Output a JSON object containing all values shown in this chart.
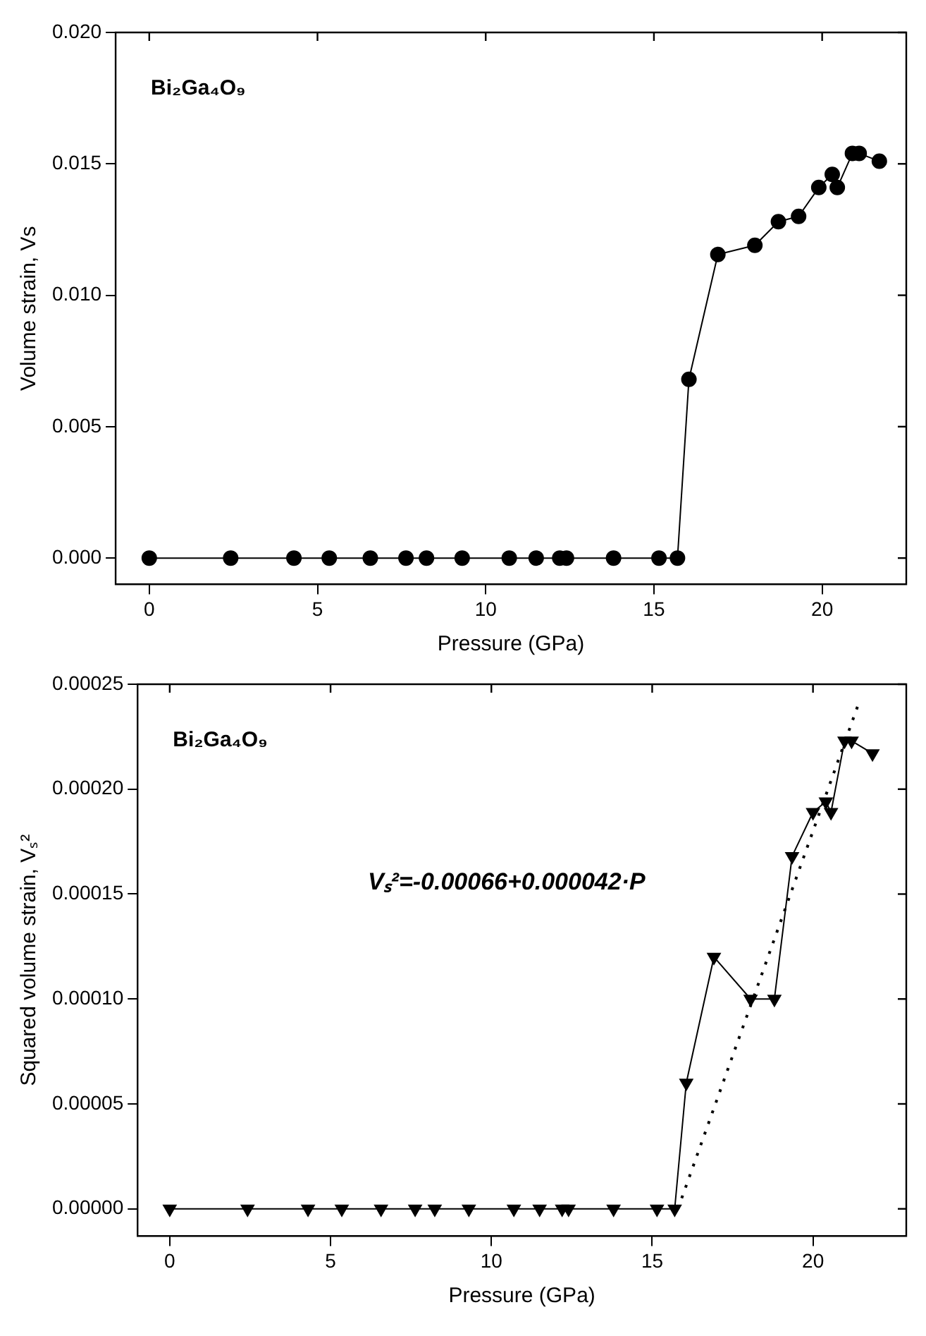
{
  "chart_data": [
    {
      "type": "line",
      "xlabel": "Pressure (GPa)",
      "ylabel": "Volume strain, Vs",
      "marker": "circle",
      "line_style": "solid",
      "grid": false,
      "legend": false,
      "annotations": [
        "Bi₂Ga₄O₉"
      ],
      "xlim": [
        -1,
        22.5
      ],
      "xticks": [
        0,
        5,
        10,
        15,
        20
      ],
      "ylim": [
        -0.001,
        0.02
      ],
      "yticks": [
        {
          "value": 0,
          "label": "0.000"
        },
        {
          "value": 0.005,
          "label": "0.005"
        },
        {
          "value": 0.01,
          "label": "0.010"
        },
        {
          "value": 0.015,
          "label": "0.015"
        },
        {
          "value": 0.02,
          "label": "0.020"
        }
      ],
      "series": [
        {
          "color": "#000000",
          "x": [
            0,
            2.42,
            4.3,
            5.35,
            6.57,
            7.63,
            8.24,
            9.3,
            10.7,
            11.5,
            12.2,
            12.4,
            13.8,
            15.15,
            15.7,
            16.04,
            16.9,
            18.0,
            18.7,
            19.3,
            19.9,
            20.3,
            20.45,
            20.9,
            21.1,
            21.7
          ],
          "values": [
            0,
            0,
            0,
            0,
            0,
            0,
            0,
            0,
            0,
            0,
            0,
            0,
            0,
            0,
            0,
            0.0068,
            0.01155,
            0.0119,
            0.0128,
            0.013,
            0.0141,
            0.0146,
            0.0141,
            0.0154,
            0.0154,
            0.0151
          ]
        }
      ]
    },
    {
      "type": "line",
      "xlabel": "Pressure (GPa)",
      "ylabel": "Squared volume strain, Vₛ²",
      "marker": "triangle",
      "line_style": "solid",
      "grid": false,
      "legend": false,
      "annotations": [
        "Bi₂Ga₄O₉",
        "Vₛ²=-0.00066+0.000042·P"
      ],
      "xlim": [
        -1,
        22.9
      ],
      "xticks": [
        0,
        5,
        10,
        15,
        20
      ],
      "ylim": [
        -1.3e-05,
        0.00025
      ],
      "yticks": [
        {
          "value": 0,
          "label": "0.00000"
        },
        {
          "value": 5e-05,
          "label": "0.00005"
        },
        {
          "value": 0.0001,
          "label": "0.00010"
        },
        {
          "value": 0.00015,
          "label": "0.00015"
        },
        {
          "value": 0.0002,
          "label": "0.00020"
        },
        {
          "value": 0.00025,
          "label": "0.00025"
        }
      ],
      "series": [
        {
          "color": "#000000",
          "x": [
            0,
            2.42,
            4.3,
            5.35,
            6.57,
            7.63,
            8.24,
            9.3,
            10.7,
            11.5,
            12.2,
            12.4,
            13.8,
            15.15,
            15.7,
            16.06,
            16.92,
            18.06,
            18.8,
            19.35,
            20.0,
            20.4,
            20.56,
            20.98,
            21.2,
            21.85
          ],
          "values": [
            0,
            0,
            0,
            0,
            0,
            0,
            0,
            0,
            0,
            0,
            0,
            0,
            0,
            0,
            0,
            6e-05,
            0.00012,
            0.0001,
            0.0001,
            0.000168,
            0.000189,
            0.000194,
            0.000189,
            0.000223,
            0.000223,
            0.000217
          ]
        },
        {
          "type": "line",
          "color": "#000000",
          "marker": "none",
          "line_style": "dotted",
          "x": [
            15.8,
            21.4
          ],
          "values": [
            0,
            0.00024
          ]
        }
      ]
    }
  ]
}
